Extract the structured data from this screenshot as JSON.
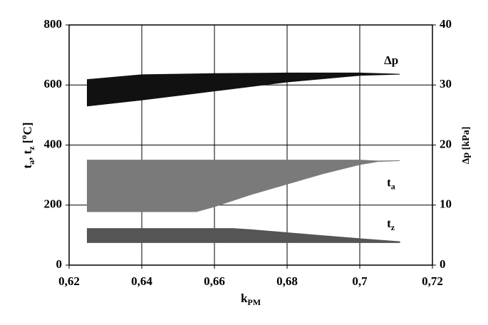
{
  "chart_data": {
    "type": "band",
    "x_label": [
      "k",
      "PM"
    ],
    "y_label": [
      "t",
      "a",
      ", t",
      "z",
      " [",
      "o",
      "C]"
    ],
    "y2_label": "Δp [kPa]",
    "xlim": [
      0.62,
      0.72
    ],
    "xticks": [
      {
        "value": 0.62,
        "label": "0,62"
      },
      {
        "value": 0.64,
        "label": "0,64"
      },
      {
        "value": 0.66,
        "label": "0,66"
      },
      {
        "value": 0.68,
        "label": "0,68"
      },
      {
        "value": 0.7,
        "label": "0,7"
      },
      {
        "value": 0.72,
        "label": "0,72"
      }
    ],
    "ylim": [
      0,
      800
    ],
    "yticks": [
      0,
      200,
      400,
      600,
      800
    ],
    "y2lim": [
      0,
      40
    ],
    "y2ticks": [
      0,
      10,
      20,
      30,
      40
    ],
    "grid": true,
    "series": [
      {
        "name": [
          "Δp"
        ],
        "color": "#111111",
        "axis": "y2",
        "x": [
          0.625,
          0.64,
          0.66,
          0.68,
          0.7,
          0.711
        ],
        "high": [
          30.9,
          31.7,
          31.9,
          32,
          32,
          31.8
        ],
        "low": [
          26.5,
          27.5,
          29,
          30.5,
          31.6,
          31.8
        ]
      },
      {
        "name": [
          "t",
          "a"
        ],
        "color": "#7a7a7a",
        "x": [
          0.625,
          0.655,
          0.66,
          0.67,
          0.68,
          0.69,
          0.7,
          0.705,
          0.711
        ],
        "high": [
          350,
          350,
          350,
          350,
          350,
          350,
          350,
          347,
          348
        ],
        "low": [
          178,
          178,
          195,
          235,
          270,
          305,
          335,
          345,
          348
        ]
      },
      {
        "name": [
          "t",
          "z"
        ],
        "color": "#555555",
        "x": [
          0.625,
          0.665,
          0.67,
          0.68,
          0.69,
          0.7,
          0.711
        ],
        "high": [
          122,
          122,
          118,
          108,
          98,
          88,
          78
        ],
        "low": [
          75,
          75,
          75,
          75,
          75,
          75,
          75
        ]
      }
    ]
  }
}
